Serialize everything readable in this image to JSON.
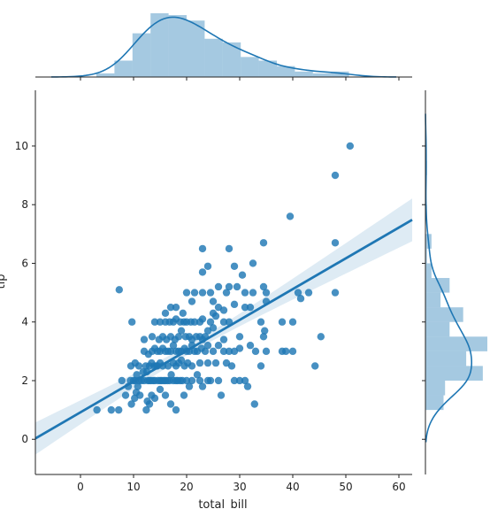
{
  "chart_data": {
    "type": "scatter",
    "subtype": "jointplot-regression",
    "xlabel": "total_bill",
    "ylabel": "tip",
    "xlim": [
      -8.5,
      62.5
    ],
    "ylim": [
      -1.2,
      11.9
    ],
    "xticks": [
      "0",
      "10",
      "20",
      "30",
      "40",
      "50",
      "60"
    ],
    "yticks": [
      "0",
      "2",
      "4",
      "6",
      "8",
      "10"
    ],
    "color": "#1f77b4",
    "band_color": "#1f77b4",
    "regression": {
      "slope": 0.105,
      "intercept": 0.92
    },
    "points": [
      [
        7.3,
        5.1
      ],
      [
        3.1,
        1.0
      ],
      [
        5.8,
        1.0
      ],
      [
        7.2,
        1.0
      ],
      [
        9.6,
        1.2
      ],
      [
        10.2,
        1.4
      ],
      [
        10.5,
        1.6
      ],
      [
        10.8,
        1.8
      ],
      [
        11.2,
        1.5
      ],
      [
        12.4,
        1.0
      ],
      [
        12.6,
        1.3
      ],
      [
        13.0,
        1.2
      ],
      [
        13.4,
        1.5
      ],
      [
        14.0,
        1.4
      ],
      [
        15.0,
        1.7
      ],
      [
        16.0,
        1.5
      ],
      [
        17.0,
        1.2
      ],
      [
        18.0,
        1.0
      ],
      [
        19.5,
        1.5
      ],
      [
        20.5,
        1.8
      ],
      [
        22.5,
        2.0
      ],
      [
        23.0,
        1.8
      ],
      [
        24.0,
        2.0
      ],
      [
        26.5,
        1.5
      ],
      [
        31.5,
        1.8
      ],
      [
        32.8,
        1.2
      ],
      [
        7.8,
        2.0
      ],
      [
        8.5,
        1.5
      ],
      [
        9.0,
        1.8
      ],
      [
        9.4,
        2.0
      ],
      [
        10.0,
        2.0
      ],
      [
        10.3,
        2.0
      ],
      [
        10.6,
        2.2
      ],
      [
        11.0,
        2.0
      ],
      [
        11.5,
        2.0
      ],
      [
        12.0,
        2.0
      ],
      [
        12.3,
        2.5
      ],
      [
        12.7,
        2.0
      ],
      [
        13.0,
        2.0
      ],
      [
        13.3,
        2.0
      ],
      [
        13.7,
        2.0
      ],
      [
        14.0,
        2.0
      ],
      [
        14.3,
        2.5
      ],
      [
        14.6,
        2.0
      ],
      [
        15.0,
        2.0
      ],
      [
        15.3,
        2.0
      ],
      [
        15.7,
        2.0
      ],
      [
        16.0,
        2.0
      ],
      [
        16.4,
        2.0
      ],
      [
        16.8,
        2.0
      ],
      [
        17.1,
        2.2
      ],
      [
        17.5,
        2.0
      ],
      [
        18.0,
        2.0
      ],
      [
        18.3,
        2.0
      ],
      [
        18.8,
        2.0
      ],
      [
        19.2,
        2.0
      ],
      [
        20.0,
        2.0
      ],
      [
        21.0,
        2.0
      ],
      [
        22.0,
        2.2
      ],
      [
        24.5,
        2.0
      ],
      [
        26.0,
        2.0
      ],
      [
        29.0,
        2.0
      ],
      [
        30.0,
        2.0
      ],
      [
        31.0,
        2.0
      ],
      [
        9.5,
        2.5
      ],
      [
        10.3,
        2.6
      ],
      [
        11.0,
        2.5
      ],
      [
        11.8,
        2.3
      ],
      [
        12.5,
        2.3
      ],
      [
        13.0,
        2.5
      ],
      [
        13.4,
        2.6
      ],
      [
        13.9,
        2.5
      ],
      [
        14.5,
        2.5
      ],
      [
        15.0,
        2.6
      ],
      [
        15.5,
        2.5
      ],
      [
        16.5,
        2.5
      ],
      [
        17.5,
        2.6
      ],
      [
        18.0,
        2.5
      ],
      [
        18.5,
        2.6
      ],
      [
        19.0,
        2.7
      ],
      [
        19.6,
        2.5
      ],
      [
        20.2,
        2.6
      ],
      [
        21.0,
        2.5
      ],
      [
        22.5,
        2.6
      ],
      [
        24.0,
        2.6
      ],
      [
        25.5,
        2.6
      ],
      [
        27.5,
        2.6
      ],
      [
        28.5,
        2.5
      ],
      [
        34.0,
        2.5
      ],
      [
        44.2,
        2.5
      ],
      [
        12.0,
        3.0
      ],
      [
        12.8,
        2.9
      ],
      [
        13.5,
        3.0
      ],
      [
        14.0,
        3.1
      ],
      [
        14.5,
        3.0
      ],
      [
        15.0,
        3.0
      ],
      [
        15.5,
        3.1
      ],
      [
        16.0,
        3.0
      ],
      [
        16.5,
        3.0
      ],
      [
        17.0,
        3.0
      ],
      [
        17.5,
        3.2
      ],
      [
        18.0,
        3.0
      ],
      [
        18.5,
        3.0
      ],
      [
        19.0,
        3.0
      ],
      [
        19.6,
        3.1
      ],
      [
        20.0,
        3.0
      ],
      [
        20.5,
        3.0
      ],
      [
        21.0,
        3.2
      ],
      [
        21.5,
        3.0
      ],
      [
        22.0,
        3.0
      ],
      [
        22.8,
        3.1
      ],
      [
        23.5,
        3.0
      ],
      [
        24.0,
        3.2
      ],
      [
        25.0,
        3.0
      ],
      [
        26.0,
        3.2
      ],
      [
        27.0,
        3.0
      ],
      [
        28.0,
        3.0
      ],
      [
        29.0,
        3.0
      ],
      [
        30.0,
        3.1
      ],
      [
        32.0,
        3.2
      ],
      [
        33.0,
        3.0
      ],
      [
        35.0,
        3.0
      ],
      [
        38.0,
        3.0
      ],
      [
        38.7,
        3.0
      ],
      [
        40.0,
        3.0
      ],
      [
        12.0,
        3.4
      ],
      [
        13.5,
        3.5
      ],
      [
        14.8,
        3.4
      ],
      [
        15.5,
        3.5
      ],
      [
        16.2,
        3.4
      ],
      [
        17.0,
        3.5
      ],
      [
        17.8,
        3.4
      ],
      [
        18.5,
        3.5
      ],
      [
        19.0,
        3.7
      ],
      [
        19.8,
        3.5
      ],
      [
        20.5,
        3.5
      ],
      [
        21.0,
        3.4
      ],
      [
        21.8,
        3.5
      ],
      [
        22.5,
        3.5
      ],
      [
        23.0,
        3.4
      ],
      [
        23.5,
        3.5
      ],
      [
        24.0,
        3.7
      ],
      [
        25.0,
        3.8
      ],
      [
        27.0,
        3.4
      ],
      [
        30.0,
        3.5
      ],
      [
        34.5,
        3.5
      ],
      [
        34.7,
        3.7
      ],
      [
        45.3,
        3.5
      ],
      [
        9.7,
        4.0
      ],
      [
        14.0,
        4.0
      ],
      [
        15.0,
        4.0
      ],
      [
        16.0,
        4.0
      ],
      [
        16.8,
        4.0
      ],
      [
        17.5,
        4.0
      ],
      [
        18.0,
        4.1
      ],
      [
        18.8,
        4.0
      ],
      [
        19.5,
        4.0
      ],
      [
        20.0,
        4.0
      ],
      [
        20.8,
        4.0
      ],
      [
        21.5,
        4.0
      ],
      [
        22.5,
        4.0
      ],
      [
        23.0,
        4.1
      ],
      [
        24.5,
        4.0
      ],
      [
        25.5,
        4.2
      ],
      [
        27.0,
        4.0
      ],
      [
        28.0,
        4.0
      ],
      [
        31.0,
        4.5
      ],
      [
        34.0,
        4.0
      ],
      [
        38.0,
        4.0
      ],
      [
        40.0,
        4.0
      ],
      [
        16.0,
        4.3
      ],
      [
        19.3,
        4.3
      ],
      [
        21.0,
        4.7
      ],
      [
        25.0,
        4.3
      ],
      [
        26.0,
        4.5
      ],
      [
        27.0,
        4.4
      ],
      [
        29.0,
        4.6
      ],
      [
        32.0,
        4.5
      ],
      [
        35.0,
        4.7
      ],
      [
        17.0,
        4.5
      ],
      [
        18.0,
        4.5
      ],
      [
        20.0,
        5.0
      ],
      [
        21.5,
        5.0
      ],
      [
        23.0,
        5.0
      ],
      [
        24.5,
        5.0
      ],
      [
        25.0,
        4.7
      ],
      [
        26.0,
        5.2
      ],
      [
        27.5,
        5.0
      ],
      [
        28.0,
        5.2
      ],
      [
        29.5,
        5.2
      ],
      [
        31.0,
        5.0
      ],
      [
        32.5,
        5.0
      ],
      [
        34.5,
        5.2
      ],
      [
        35.0,
        5.0
      ],
      [
        41.0,
        5.0
      ],
      [
        43.0,
        5.0
      ],
      [
        48.0,
        5.0
      ],
      [
        23.0,
        5.7
      ],
      [
        24.0,
        5.9
      ],
      [
        29.0,
        5.9
      ],
      [
        30.5,
        5.6
      ],
      [
        32.5,
        6.0
      ],
      [
        23.0,
        6.5
      ],
      [
        28.0,
        6.5
      ],
      [
        34.5,
        6.7
      ],
      [
        48.0,
        6.7
      ],
      [
        39.5,
        7.6
      ],
      [
        48.0,
        9.0
      ],
      [
        50.8,
        10.0
      ],
      [
        41.5,
        4.8
      ]
    ]
  }
}
